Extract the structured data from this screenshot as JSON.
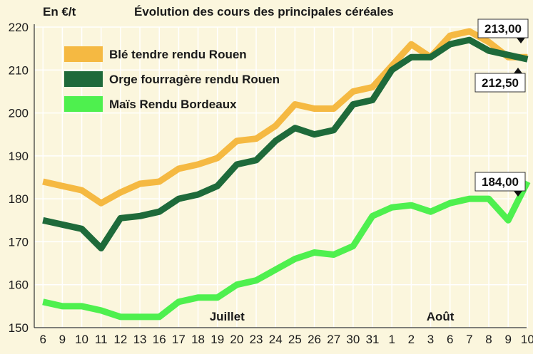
{
  "chart_data": {
    "type": "line",
    "title": "Évolution des cours des principales céréales",
    "ylabel": "En €/t",
    "xlabel": "",
    "ylim": [
      150,
      220
    ],
    "yticks": [
      150,
      160,
      170,
      180,
      190,
      200,
      210,
      220
    ],
    "grid": true,
    "legend_position": "top-left",
    "categories": [
      "6",
      "9",
      "10",
      "11",
      "12",
      "13",
      "16",
      "17",
      "18",
      "19",
      "20",
      "23",
      "24",
      "25",
      "26",
      "27",
      "30",
      "31",
      "1",
      "2",
      "3",
      "6",
      "7",
      "8",
      "9",
      "10"
    ],
    "month_labels": [
      {
        "text": "Juillet",
        "category_index": 9.5
      },
      {
        "text": "Août",
        "category_index": 20.5
      }
    ],
    "series": [
      {
        "name": "Blé tendre rendu Rouen",
        "color": "#f5b942",
        "values": [
          184,
          183,
          182,
          179,
          181.5,
          183.5,
          184,
          187,
          188,
          189.5,
          193.5,
          194,
          197,
          202,
          201,
          201,
          205,
          206,
          211,
          216,
          213,
          218,
          219,
          216.5,
          213,
          213
        ]
      },
      {
        "name": "Orge fourragère rendu Rouen",
        "color": "#1e6a3a",
        "values": [
          175,
          174,
          173,
          168.5,
          175.5,
          176,
          177,
          180,
          181,
          183,
          188,
          189,
          193.5,
          196.5,
          195,
          196,
          202,
          203,
          210,
          213,
          213,
          216,
          217,
          214.5,
          213.5,
          212.5
        ]
      },
      {
        "name": "Maïs Rendu Bordeaux",
        "color": "#4ef04e",
        "values": [
          156,
          155,
          155,
          154,
          152.5,
          152.5,
          152.5,
          156,
          157,
          157,
          160,
          161,
          163.5,
          166,
          167.5,
          167,
          169,
          176,
          178,
          178.5,
          177,
          179,
          180,
          180,
          175,
          184
        ]
      }
    ],
    "annotations": [
      {
        "text": "213,00",
        "series": 0,
        "category_index": 25
      },
      {
        "text": "212,50",
        "series": 1,
        "category_index": 25
      },
      {
        "text": "184,00",
        "series": 2,
        "category_index": 25
      }
    ]
  }
}
